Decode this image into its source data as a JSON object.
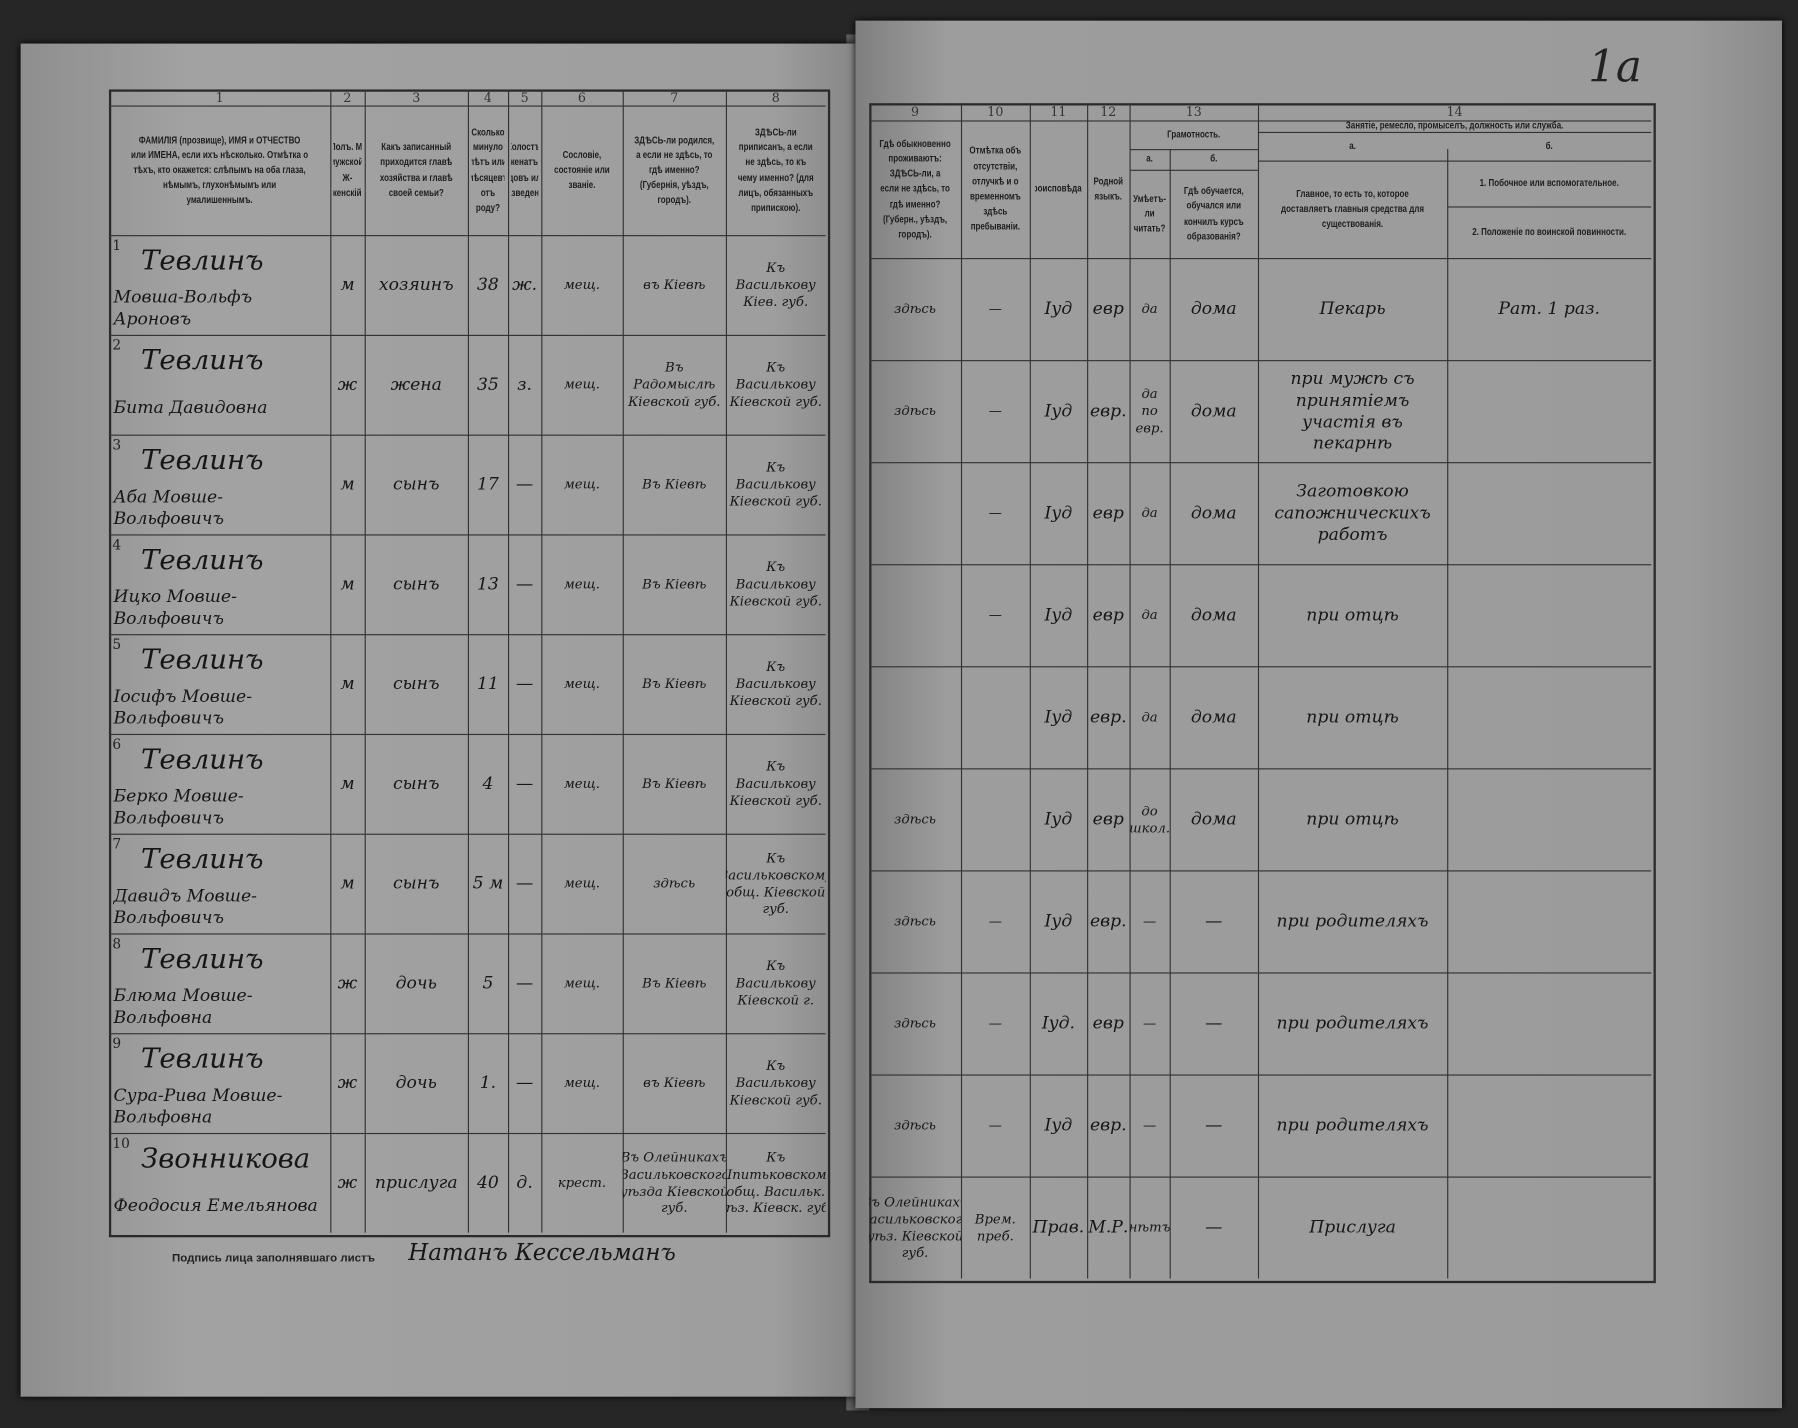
{
  "form": {
    "left_column_numbers": [
      "1",
      "2",
      "3",
      "4",
      "5",
      "6",
      "7",
      "8"
    ],
    "right_column_numbers": [
      "9",
      "10",
      "11",
      "12",
      "13",
      "14"
    ],
    "left_headers": [
      "ФАМИЛІЯ (прозвище), ИМЯ и ОТЧЕСТВО или ИМЕНА, если ихъ нѣсколько. Отмѣтка о тѣхъ, кто окажется: слѣпымъ на оба глаза, нѣмымъ, глухонѣмымъ или умалишеннымъ.",
      "Полъ. М-мужской. Ж-женскій.",
      "Какъ записанный приходится главѣ хозяйства и главѣ своей семьи?",
      "Сколько минуло лѣтъ или мѣсяцевъ отъ роду?",
      "Холостъ, женатъ, вдовъ или разведенъ.",
      "Сословіе, состояніе или званіе.",
      "ЗДѢСЬ-ли родился, а если не здѣсь, то гдѣ именно? (Губернія, уѣздъ, городъ).",
      "ЗДѢСЬ-ли приписанъ, а если не здѣсь, то къ чему именно? (для лицъ, обязанныхъ припискою)."
    ],
    "right_headers": {
      "col9": "Гдѣ обыкновенно проживаютъ: ЗДѢСЬ-ли, а если не здѣсь, то гдѣ именно? (Губерн., уѣздъ, городъ).",
      "col10": "Отмѣтка объ отсутствіи, отлучкѣ и о временномъ здѣсь пребываніи.",
      "col11": "Вѣроисповѣданіе.",
      "col12": "Родной языкъ.",
      "col13": "Грамотность.",
      "col13a_letter": "а.",
      "col13b_letter": "б.",
      "col13a": "Умѣетъ-ли читать?",
      "col13b": "Гдѣ обучается, обучался или кончилъ курсъ образованія?",
      "col14": "Занятіе, ремесло, промыселъ, должность или служба.",
      "col14a_letter": "а.",
      "col14b_letter": "б.",
      "col14a": "Главное, то есть то, которое доставляетъ главныя средства для существованія.",
      "col14b_1": "1. Побочное или вспомогательное.",
      "col14b_2": "2. Положеніе по воинской повинности."
    },
    "rows": [
      {
        "n": "1",
        "surname": "Тевлинъ",
        "name": "Мовша-Вольфъ Ароновъ",
        "sex": "м",
        "relation": "хозяинъ",
        "age": "38",
        "marital": "ж.",
        "estate": "мещ.",
        "born": "въ Кіевѣ",
        "registered": "Къ Василькову Кіев. губ.",
        "residence": "здѣсь",
        "absence": "—",
        "religion": "Іуд",
        "language": "евр",
        "literate": "да",
        "schooling": "дома",
        "occupation": "Пекарь",
        "secondary": "Рат. 1 раз."
      },
      {
        "n": "2",
        "surname": "Тевлинъ",
        "name": "Бита Давидовна",
        "sex": "ж",
        "relation": "жена",
        "age": "35",
        "marital": "з.",
        "estate": "мещ.",
        "born": "Въ Радомыслѣ Кіевской губ.",
        "registered": "Къ Василькову Кіевской губ.",
        "residence": "здѣсь",
        "absence": "—",
        "religion": "Іуд",
        "language": "евр.",
        "literate": "да по евр.",
        "schooling": "дома",
        "occupation": "при мужѣ съ принятіемъ участія въ пекарнѣ",
        "secondary": ""
      },
      {
        "n": "3",
        "surname": "Тевлинъ",
        "name": "Аба Мовше-Вольфовичъ",
        "sex": "м",
        "relation": "сынъ",
        "age": "17",
        "marital": "—",
        "estate": "мещ.",
        "born": "Въ Кіевѣ",
        "registered": "Къ Василькову Кіевской губ.",
        "residence": "",
        "absence": "—",
        "religion": "Іуд",
        "language": "евр",
        "literate": "да",
        "schooling": "дома",
        "occupation": "Заготовкою сапожническихъ работъ",
        "secondary": ""
      },
      {
        "n": "4",
        "surname": "Тевлинъ",
        "name": "Ицко Мовше-Вольфовичъ",
        "sex": "м",
        "relation": "сынъ",
        "age": "13",
        "marital": "—",
        "estate": "мещ.",
        "born": "Въ Кіевѣ",
        "registered": "Къ Василькову Кіевской губ.",
        "residence": "",
        "absence": "—",
        "religion": "Іуд",
        "language": "евр",
        "literate": "да",
        "schooling": "дома",
        "occupation": "при отцѣ",
        "secondary": ""
      },
      {
        "n": "5",
        "surname": "Тевлинъ",
        "name": "Іосифъ Мовше-Вольфовичъ",
        "sex": "м",
        "relation": "сынъ",
        "age": "11",
        "marital": "—",
        "estate": "мещ.",
        "born": "Въ Кіевѣ",
        "registered": "Къ Василькову Кіевской губ.",
        "residence": "",
        "absence": "",
        "religion": "Іуд",
        "language": "евр.",
        "literate": "да",
        "schooling": "дома",
        "occupation": "при отцѣ",
        "secondary": ""
      },
      {
        "n": "6",
        "surname": "Тевлинъ",
        "name": "Берко Мовше-Вольфовичъ",
        "sex": "м",
        "relation": "сынъ",
        "age": "4",
        "marital": "—",
        "estate": "мещ.",
        "born": "Въ Кіевѣ",
        "registered": "Къ Василькову Кіевской губ.",
        "residence": "здѣсь",
        "absence": "",
        "religion": "Іуд",
        "language": "евр",
        "literate": "до школ.",
        "schooling": "дома",
        "occupation": "при отцѣ",
        "secondary": ""
      },
      {
        "n": "7",
        "surname": "Тевлинъ",
        "name": "Давидъ Мовше-Вольфовичъ",
        "sex": "м",
        "relation": "сынъ",
        "age": "5 м",
        "marital": "—",
        "estate": "мещ.",
        "born": "здѣсь",
        "registered": "Къ Васильковскому общ. Кіевской губ.",
        "residence": "здѣсь",
        "absence": "—",
        "religion": "Іуд",
        "language": "евр.",
        "literate": "—",
        "schooling": "—",
        "occupation": "при родителяхъ",
        "secondary": ""
      },
      {
        "n": "8",
        "surname": "Тевлинъ",
        "name": "Блюма Мовше-Вольфовна",
        "sex": "ж",
        "relation": "дочь",
        "age": "5",
        "marital": "—",
        "estate": "мещ.",
        "born": "Въ Кіевѣ",
        "registered": "Къ Василькову Кіевской г.",
        "residence": "здѣсь",
        "absence": "—",
        "religion": "Іуд.",
        "language": "евр",
        "literate": "—",
        "schooling": "—",
        "occupation": "при родителяхъ",
        "secondary": ""
      },
      {
        "n": "9",
        "surname": "Тевлинъ",
        "name": "Сура-Рива Мовше-Вольфовна",
        "sex": "ж",
        "relation": "дочь",
        "age": "1.",
        "marital": "—",
        "estate": "мещ.",
        "born": "въ Кіевѣ",
        "registered": "Къ Василькову Кіевской губ.",
        "residence": "здѣсь",
        "absence": "—",
        "religion": "Іуд",
        "language": "евр.",
        "literate": "—",
        "schooling": "—",
        "occupation": "при родителяхъ",
        "secondary": ""
      },
      {
        "n": "10",
        "surname": "Звонникова",
        "name": "Феодосия Емельянова",
        "sex": "ж",
        "relation": "прислуга",
        "age": "40",
        "marital": "д.",
        "estate": "крест.",
        "born": "Въ Олейникахъ Васильковского уѣзда Кіевской губ.",
        "registered": "Къ Шпитьковскому общ. Васильк. уѣз. Кіевск. губ.",
        "residence": "Въ Олейникахъ Васильковского уѣз. Кіевской губ.",
        "absence": "Врем. преб.",
        "religion": "Прав.",
        "language": "М.Р.",
        "literate": "нѣтъ",
        "schooling": "—",
        "occupation": "Прислуга",
        "secondary": ""
      }
    ],
    "footer_label": "Подпись лица заполнявшаго листъ",
    "signature": "Натанъ Кессельманъ",
    "sheet_mark": "1а"
  },
  "colors": {
    "background": "#262626",
    "paper": "#9b9b9b",
    "ink": "#161616"
  }
}
